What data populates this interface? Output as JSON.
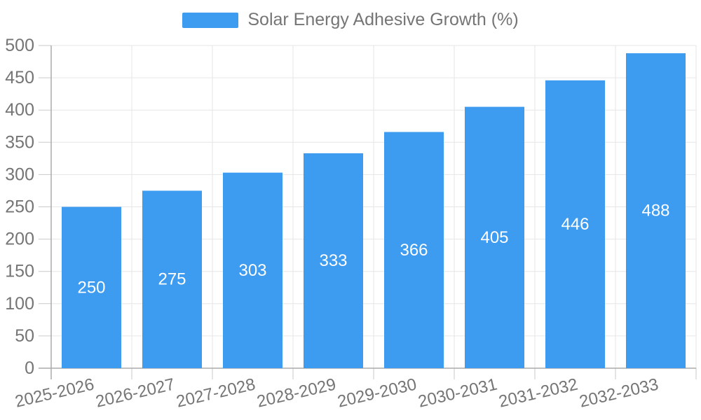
{
  "legend": {
    "label": "Solar Energy Adhesive Growth (%)",
    "position": "top-center"
  },
  "chart_data": {
    "type": "bar",
    "title": "",
    "categories": [
      "2025-2026",
      "2026-2027",
      "2027-2028",
      "2028-2029",
      "2029-2030",
      "2030-2031",
      "2031-2032",
      "2032-2033"
    ],
    "series": [
      {
        "name": "Solar Energy Adhesive Growth (%)",
        "values": [
          250,
          275,
          303,
          333,
          366,
          405,
          446,
          488
        ]
      }
    ],
    "show_data_labels": true,
    "xlabel": "",
    "ylabel": "",
    "ylim": [
      0,
      500
    ],
    "ytick_step": 50,
    "yticks": [
      0,
      50,
      100,
      150,
      200,
      250,
      300,
      350,
      400,
      450,
      500
    ],
    "grid": true,
    "legend_position": "top-center",
    "x_tick_rotation_deg": -13,
    "colors": {
      "bar": "#3D9BF0",
      "bar_label_text": "#FFFFFF",
      "axis_text": "#757575",
      "grid_line": "#E6E6E6",
      "tick_line": "#C9C9C9",
      "axis_line": "#ABABAB",
      "background": "#FFFFFF"
    }
  }
}
